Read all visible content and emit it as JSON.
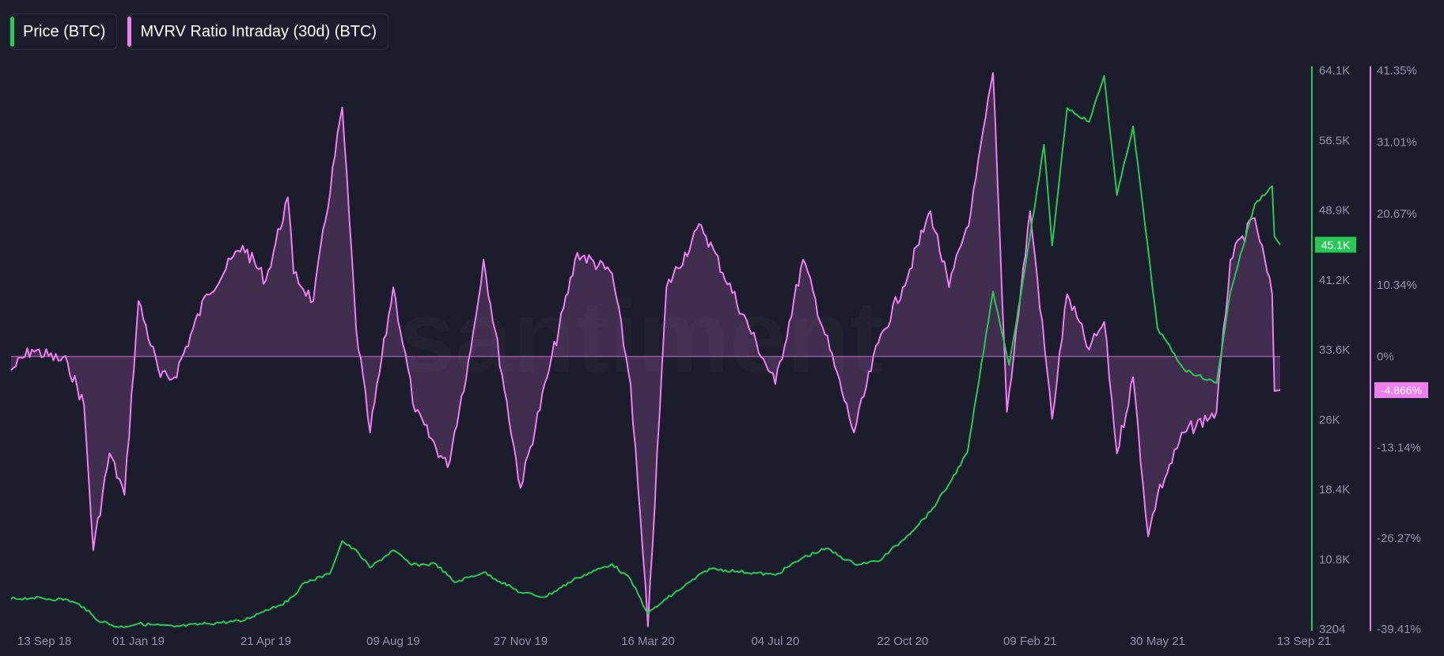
{
  "legend": {
    "price": "Price (BTC)",
    "mvrv": "MVRV Ratio Intraday (30d) (BTC)"
  },
  "watermark": "santiment",
  "colors": {
    "background": "#1b1d2c",
    "price": "#26c953",
    "mvrv": "#f07ef0",
    "axis_text": "#8e92a8"
  },
  "chart_data": {
    "type": "line",
    "x_tick_labels": [
      "13 Sep 18",
      "01 Jan 19",
      "21 Apr 19",
      "09 Aug 19",
      "27 Nov 19",
      "16 Mar 20",
      "04 Jul 20",
      "22 Oct 20",
      "09 Feb 21",
      "30 May 21",
      "13 Sep 21"
    ],
    "y_left_ticks": [
      "64.1K",
      "56.5K",
      "48.9K",
      "41.2K",
      "33.6K",
      "26K",
      "18.4K",
      "10.8K",
      "3204"
    ],
    "y_left_range": [
      3204,
      64100
    ],
    "y_right_ticks": [
      "41.35%",
      "31.01%",
      "20.67%",
      "10.34%",
      "0%",
      "-13.14%",
      "-26.27%",
      "-39.41%"
    ],
    "y_right_range": [
      -39.41,
      41.35
    ],
    "current_price_label": "45.1K",
    "current_mvrv_label": "-4.866%",
    "series": [
      {
        "name": "Price (BTC)",
        "axis": "left",
        "color": "#26c953",
        "points": [
          [
            "13 Sep 18",
            6500
          ],
          [
            "01 Oct 18",
            6600
          ],
          [
            "01 Nov 18",
            6400
          ],
          [
            "15 Nov 18",
            5600
          ],
          [
            "25 Nov 18",
            4300
          ],
          [
            "15 Dec 18",
            3400
          ],
          [
            "01 Jan 19",
            3800
          ],
          [
            "01 Feb 19",
            3450
          ],
          [
            "01 Mar 19",
            3800
          ],
          [
            "01 Apr 19",
            4100
          ],
          [
            "21 Apr 19",
            5300
          ],
          [
            "10 May 19",
            6200
          ],
          [
            "25 May 19",
            8300
          ],
          [
            "15 Jun 19",
            9200
          ],
          [
            "26 Jun 19",
            12800
          ],
          [
            "10 Jul 19",
            11500
          ],
          [
            "20 Jul 19",
            9900
          ],
          [
            "09 Aug 19",
            11800
          ],
          [
            "25 Aug 19",
            10200
          ],
          [
            "15 Sep 19",
            10300
          ],
          [
            "01 Oct 19",
            8300
          ],
          [
            "26 Oct 19",
            9400
          ],
          [
            "27 Nov 19",
            7200
          ],
          [
            "18 Dec 19",
            6700
          ],
          [
            "15 Jan 20",
            8800
          ],
          [
            "14 Feb 20",
            10300
          ],
          [
            "01 Mar 20",
            8600
          ],
          [
            "16 Mar 20",
            4900
          ],
          [
            "01 Apr 20",
            6500
          ],
          [
            "08 May 20",
            9800
          ],
          [
            "01 Jun 20",
            9500
          ],
          [
            "04 Jul 20",
            9100
          ],
          [
            "28 Jul 20",
            11000
          ],
          [
            "17 Aug 20",
            12000
          ],
          [
            "10 Sep 20",
            10300
          ],
          [
            "01 Oct 20",
            10600
          ],
          [
            "22 Oct 20",
            12900
          ],
          [
            "15 Nov 20",
            16000
          ],
          [
            "01 Dec 20",
            19000
          ],
          [
            "17 Dec 20",
            22500
          ],
          [
            "08 Jan 21",
            40000
          ],
          [
            "22 Jan 21",
            32000
          ],
          [
            "09 Feb 21",
            46000
          ],
          [
            "21 Feb 21",
            56000
          ],
          [
            "28 Feb 21",
            45000
          ],
          [
            "13 Mar 21",
            60000
          ],
          [
            "01 Apr 21",
            58500
          ],
          [
            "14 Apr 21",
            63500
          ],
          [
            "25 Apr 21",
            50500
          ],
          [
            "09 May 21",
            58000
          ],
          [
            "30 May 21",
            36000
          ],
          [
            "22 Jun 21",
            31500
          ],
          [
            "20 Jul 21",
            30000
          ],
          [
            "01 Aug 21",
            40000
          ],
          [
            "22 Aug 21",
            49500
          ],
          [
            "06 Sep 21",
            51500
          ],
          [
            "08 Sep 21",
            46000
          ],
          [
            "13 Sep 21",
            45100
          ]
        ]
      },
      {
        "name": "MVRV Ratio Intraday (30d) (BTC)",
        "axis": "right",
        "color": "#f07ef0",
        "points": [
          [
            "13 Sep 18",
            -2
          ],
          [
            "01 Oct 18",
            1
          ],
          [
            "01 Nov 18",
            -1
          ],
          [
            "15 Nov 18",
            -7
          ],
          [
            "23 Nov 18",
            -28
          ],
          [
            "07 Dec 18",
            -14
          ],
          [
            "20 Dec 18",
            -20
          ],
          [
            "01 Jan 19",
            8
          ],
          [
            "20 Jan 19",
            -3
          ],
          [
            "01 Feb 19",
            -3
          ],
          [
            "01 Mar 19",
            9
          ],
          [
            "01 Apr 19",
            16
          ],
          [
            "21 Apr 19",
            11
          ],
          [
            "10 May 19",
            23
          ],
          [
            "15 May 19",
            12
          ],
          [
            "01 Jun 19",
            8
          ],
          [
            "26 Jun 19",
            36
          ],
          [
            "08 Jul 19",
            4
          ],
          [
            "20 Jul 19",
            -11
          ],
          [
            "09 Aug 19",
            10
          ],
          [
            "28 Aug 19",
            -8
          ],
          [
            "25 Sep 19",
            -16
          ],
          [
            "15 Oct 19",
            1
          ],
          [
            "26 Oct 19",
            14
          ],
          [
            "27 Nov 19",
            -19
          ],
          [
            "20 Dec 19",
            -3
          ],
          [
            "15 Jan 20",
            15
          ],
          [
            "14 Feb 20",
            12
          ],
          [
            "01 Mar 20",
            -4
          ],
          [
            "16 Mar 20",
            -39
          ],
          [
            "01 Apr 20",
            10
          ],
          [
            "01 May 20",
            19
          ],
          [
            "04 Jul 20",
            -4
          ],
          [
            "28 Jul 20",
            14
          ],
          [
            "10 Sep 20",
            -11
          ],
          [
            "01 Oct 20",
            2
          ],
          [
            "22 Oct 20",
            10
          ],
          [
            "15 Nov 20",
            21
          ],
          [
            "01 Dec 20",
            10
          ],
          [
            "20 Dec 20",
            21
          ],
          [
            "08 Jan 21",
            41
          ],
          [
            "20 Jan 21",
            -8
          ],
          [
            "09 Feb 21",
            21
          ],
          [
            "28 Feb 21",
            -9
          ],
          [
            "13 Mar 21",
            9
          ],
          [
            "01 Apr 21",
            1
          ],
          [
            "14 Apr 21",
            5
          ],
          [
            "25 Apr 21",
            -14
          ],
          [
            "09 May 21",
            -3
          ],
          [
            "22 May 21",
            -26
          ],
          [
            "30 May 21",
            -20
          ],
          [
            "22 Jun 21",
            -11
          ],
          [
            "20 Jul 21",
            -8
          ],
          [
            "01 Aug 21",
            14
          ],
          [
            "22 Aug 21",
            20
          ],
          [
            "06 Sep 21",
            9
          ],
          [
            "08 Sep 21",
            -5
          ],
          [
            "13 Sep 21",
            -4.866
          ]
        ]
      }
    ],
    "grid": false,
    "legend_position": "top-left"
  }
}
